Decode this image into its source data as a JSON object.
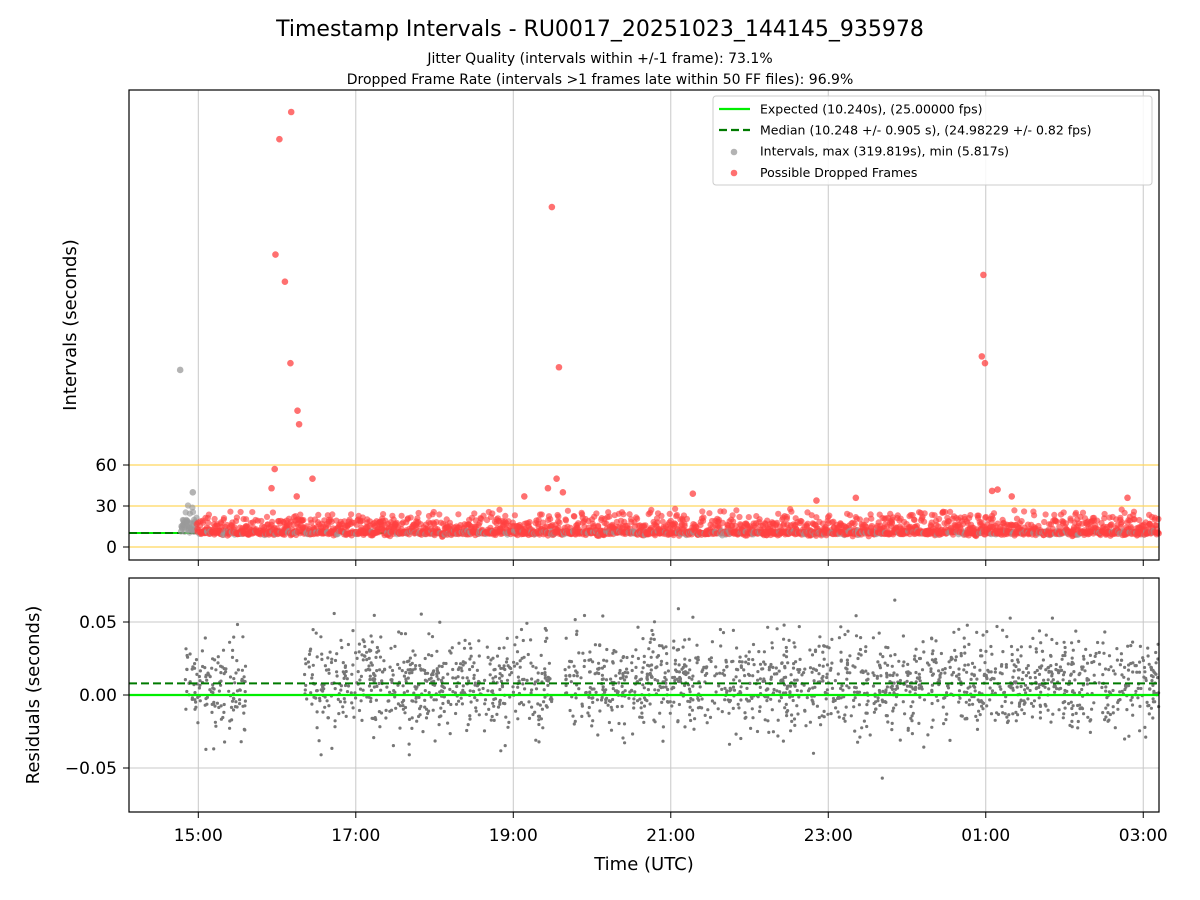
{
  "chart_data": [
    {
      "type": "scatter",
      "panel": "intervals",
      "title": "Timestamp Intervals - RU0017_20251023_144145_935978",
      "subtitle_lines": [
        "Jitter Quality (intervals within +/-1 frame): 73.1%",
        "Dropped Frame Rate (intervals >1 frames late within 50 FF files): 96.9%"
      ],
      "ylabel": "Intervals (seconds)",
      "xlim_hours": [
        14.12,
        27.2
      ],
      "ylim": [
        -10,
        330
      ],
      "yscale": "symlog-like (linear 0–60, compressed above)",
      "yticks": [
        0,
        30,
        60
      ],
      "ytick_labels": [
        "0",
        "30",
        "60"
      ],
      "reference_lines": [
        0,
        30,
        60
      ],
      "reference_line_color": "#ffd75e",
      "grid_x": true,
      "legend_position": "upper right",
      "legend": [
        {
          "label": "Expected (10.240s), (25.00000 fps)",
          "kind": "line",
          "color": "#00ee00"
        },
        {
          "label": "Median (10.248 +/- 0.905 s), (24.98229 +/- 0.82 fps)",
          "kind": "dashed",
          "color": "#007a00"
        },
        {
          "label": "Intervals, max (319.819s), min (5.817s)",
          "kind": "marker",
          "color": "#9a9a9a"
        },
        {
          "label": "Possible Dropped Frames",
          "kind": "marker",
          "color": "#ff4040"
        }
      ],
      "expected_interval": 10.24,
      "median_interval": 10.248,
      "dropped_frames_outliers": [
        {
          "t": 16.03,
          "y": 300
        },
        {
          "t": 16.18,
          "y": 320
        },
        {
          "t": 15.98,
          "y": 215
        },
        {
          "t": 16.1,
          "y": 195
        },
        {
          "t": 19.49,
          "y": 250
        },
        {
          "t": 24.97,
          "y": 200
        },
        {
          "t": 16.17,
          "y": 135
        },
        {
          "t": 19.58,
          "y": 132
        },
        {
          "t": 24.95,
          "y": 140
        },
        {
          "t": 24.99,
          "y": 135
        },
        {
          "t": 16.26,
          "y": 100
        },
        {
          "t": 16.28,
          "y": 90
        },
        {
          "t": 15.97,
          "y": 57
        },
        {
          "t": 16.45,
          "y": 50
        },
        {
          "t": 19.55,
          "y": 50
        },
        {
          "t": 15.93,
          "y": 43
        },
        {
          "t": 19.44,
          "y": 43
        },
        {
          "t": 19.63,
          "y": 40
        },
        {
          "t": 21.28,
          "y": 39
        },
        {
          "t": 16.25,
          "y": 37
        },
        {
          "t": 19.14,
          "y": 37
        },
        {
          "t": 25.15,
          "y": 42
        },
        {
          "t": 25.08,
          "y": 41
        },
        {
          "t": 25.33,
          "y": 37
        },
        {
          "t": 23.35,
          "y": 36
        },
        {
          "t": 22.85,
          "y": 34
        },
        {
          "t": 26.8,
          "y": 36
        }
      ],
      "gray_outliers": [
        {
          "t": 14.77,
          "y": 130
        },
        {
          "t": 14.93,
          "y": 40
        }
      ],
      "time_range_hours": [
        14.78,
        27.2
      ]
    },
    {
      "type": "scatter",
      "panel": "residuals",
      "xlabel": "Time (UTC)",
      "ylabel": "Residuals (seconds)",
      "xlim_hours": [
        14.12,
        27.2
      ],
      "ylim": [
        -0.08,
        0.08
      ],
      "yticks": [
        -0.05,
        0.0,
        0.05
      ],
      "ytick_labels": [
        "−0.05",
        "0.00",
        "0.05"
      ],
      "grid": true,
      "expected_residual": 0.0,
      "median_residual": 0.008,
      "residual_spread_sd": 0.02,
      "gaps_hours": [
        [
          15.6,
          16.35
        ],
        [
          19.5,
          19.65
        ]
      ],
      "xticks_hours": [
        15,
        17,
        19,
        21,
        23,
        25,
        27
      ],
      "xtick_labels": [
        "15:00",
        "17:00",
        "19:00",
        "21:00",
        "23:00",
        "01:00",
        "03:00"
      ]
    }
  ],
  "colors": {
    "expected_line": "#00ee00",
    "median_line": "#007a00",
    "interval_points": "#9a9a9a",
    "dropped_points": "#ff4040",
    "residual_points": "#777777",
    "grid": "#c8c8c8",
    "reference_lines": "#ffd75e"
  }
}
